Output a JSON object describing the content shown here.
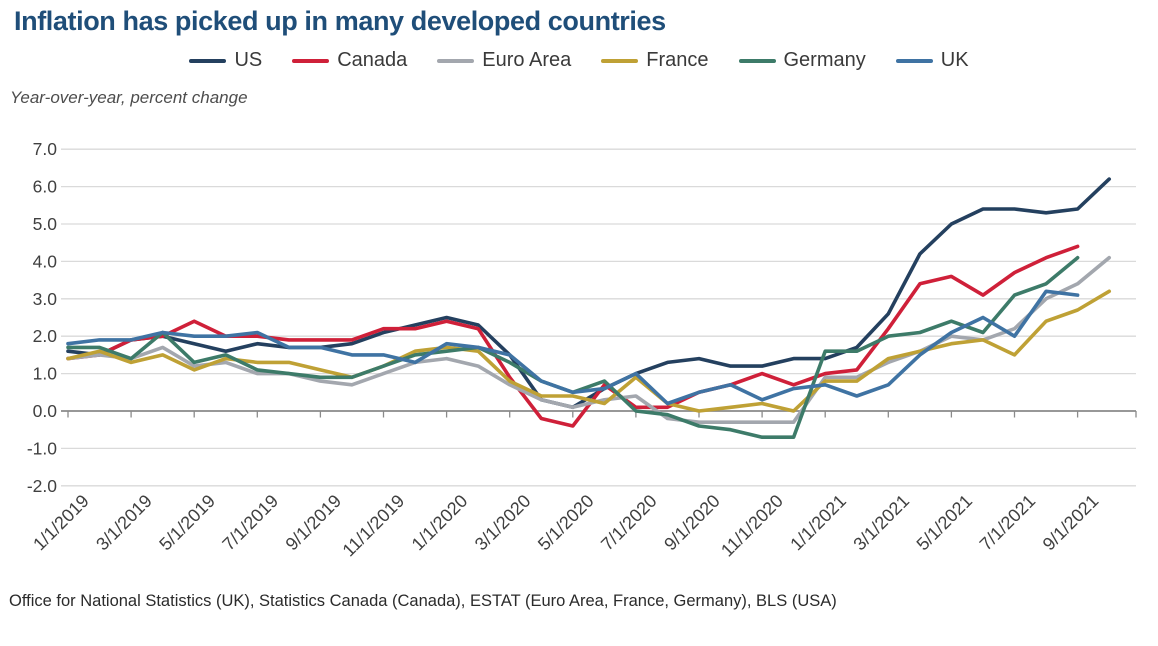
{
  "title": "Inflation has picked up in many developed countries",
  "subtitle": "Year-over-year, percent change",
  "source": "Office for National Statistics (UK), Statistics Canada (Canada), ESTAT (Euro Area, France, Germany), BLS (USA)",
  "chart_data": {
    "type": "line",
    "title": "Inflation has picked up in many developed countries",
    "ylabel": "Year-over-year, percent change",
    "ylim": [
      -2.0,
      7.0
    ],
    "ytick_step": 1.0,
    "grid": true,
    "legend_position": "top",
    "colors": {
      "title": "#1f4e79",
      "gridline": "#dadada",
      "zero_axis": "#8a8a8a",
      "axis_text": "#404040"
    },
    "x": [
      "1/1/2019",
      "2/1/2019",
      "3/1/2019",
      "4/1/2019",
      "5/1/2019",
      "6/1/2019",
      "7/1/2019",
      "8/1/2019",
      "9/1/2019",
      "10/1/2019",
      "11/1/2019",
      "12/1/2019",
      "1/1/2020",
      "2/1/2020",
      "3/1/2020",
      "4/1/2020",
      "5/1/2020",
      "6/1/2020",
      "7/1/2020",
      "8/1/2020",
      "9/1/2020",
      "10/1/2020",
      "11/1/2020",
      "12/1/2020",
      "1/1/2021",
      "2/1/2021",
      "3/1/2021",
      "4/1/2021",
      "5/1/2021",
      "6/1/2021",
      "7/1/2021",
      "8/1/2021",
      "9/1/2021",
      "10/1/2021"
    ],
    "tick_labels": [
      "1/1/2019",
      "3/1/2019",
      "5/1/2019",
      "7/1/2019",
      "9/1/2019",
      "11/1/2019",
      "1/1/2020",
      "3/1/2020",
      "5/1/2020",
      "7/1/2020",
      "9/1/2020",
      "11/1/2020",
      "1/1/2021",
      "3/1/2021",
      "5/1/2021",
      "7/1/2021",
      "9/1/2021"
    ],
    "series": [
      {
        "name": "US",
        "color": "#24405f",
        "values": [
          1.6,
          1.5,
          1.9,
          2.0,
          1.8,
          1.6,
          1.8,
          1.7,
          1.7,
          1.8,
          2.1,
          2.3,
          2.5,
          2.3,
          1.5,
          0.3,
          0.1,
          0.6,
          1.0,
          1.3,
          1.4,
          1.2,
          1.2,
          1.4,
          1.4,
          1.7,
          2.6,
          4.2,
          5.0,
          5.4,
          5.4,
          5.3,
          5.4,
          6.2
        ]
      },
      {
        "name": "Canada",
        "color": "#cf2039",
        "values": [
          1.4,
          1.5,
          1.9,
          2.0,
          2.4,
          2.0,
          2.0,
          1.9,
          1.9,
          1.9,
          2.2,
          2.2,
          2.4,
          2.2,
          0.9,
          -0.2,
          -0.4,
          0.7,
          0.1,
          0.1,
          0.5,
          0.7,
          1.0,
          0.7,
          1.0,
          1.1,
          2.2,
          3.4,
          3.6,
          3.1,
          3.7,
          4.1,
          4.4
        ]
      },
      {
        "name": "Euro Area",
        "color": "#a3a7ae",
        "values": [
          1.4,
          1.5,
          1.4,
          1.7,
          1.2,
          1.3,
          1.0,
          1.0,
          0.8,
          0.7,
          1.0,
          1.3,
          1.4,
          1.2,
          0.7,
          0.3,
          0.1,
          0.3,
          0.4,
          -0.2,
          -0.3,
          -0.3,
          -0.3,
          -0.3,
          0.9,
          0.9,
          1.3,
          1.6,
          2.0,
          1.9,
          2.2,
          3.0,
          3.4,
          4.1
        ]
      },
      {
        "name": "France",
        "color": "#bfa135",
        "values": [
          1.4,
          1.6,
          1.3,
          1.5,
          1.1,
          1.4,
          1.3,
          1.3,
          1.1,
          0.9,
          1.2,
          1.6,
          1.7,
          1.6,
          0.8,
          0.4,
          0.4,
          0.2,
          0.9,
          0.2,
          0.0,
          0.1,
          0.2,
          0.0,
          0.8,
          0.8,
          1.4,
          1.6,
          1.8,
          1.9,
          1.5,
          2.4,
          2.7,
          3.2
        ]
      },
      {
        "name": "Germany",
        "color": "#3d7b69",
        "values": [
          1.7,
          1.7,
          1.4,
          2.1,
          1.3,
          1.5,
          1.1,
          1.0,
          0.9,
          0.9,
          1.2,
          1.5,
          1.6,
          1.7,
          1.3,
          0.8,
          0.5,
          0.8,
          0.0,
          -0.1,
          -0.4,
          -0.5,
          -0.7,
          -0.7,
          1.6,
          1.6,
          2.0,
          2.1,
          2.4,
          2.1,
          3.1,
          3.4,
          4.1
        ]
      },
      {
        "name": "UK",
        "color": "#3f73a3",
        "values": [
          1.8,
          1.9,
          1.9,
          2.1,
          2.0,
          2.0,
          2.1,
          1.7,
          1.7,
          1.5,
          1.5,
          1.3,
          1.8,
          1.7,
          1.5,
          0.8,
          0.5,
          0.6,
          1.0,
          0.2,
          0.5,
          0.7,
          0.3,
          0.6,
          0.7,
          0.4,
          0.7,
          1.5,
          2.1,
          2.5,
          2.0,
          3.2,
          3.1
        ]
      }
    ]
  }
}
